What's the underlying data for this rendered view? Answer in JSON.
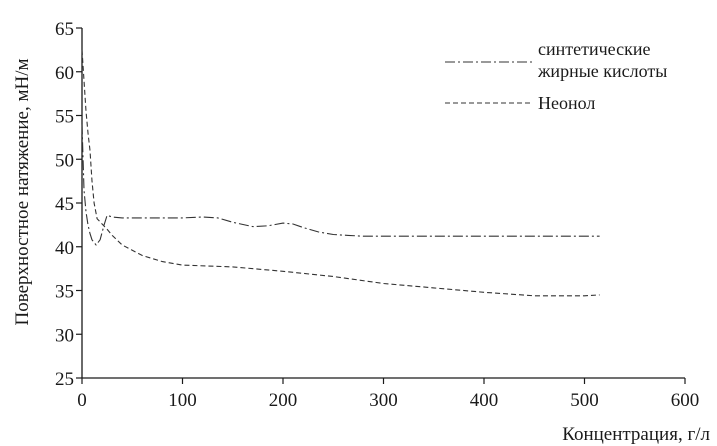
{
  "chart_data": {
    "type": "line",
    "title": "",
    "xlabel": "Концентрация, г/л",
    "ylabel": "Поверхностное натяжение, мН/м",
    "xlim": [
      0,
      600
    ],
    "ylim": [
      25,
      65
    ],
    "x_ticks": [
      0,
      100,
      200,
      300,
      400,
      500,
      600
    ],
    "y_ticks": [
      25,
      30,
      35,
      40,
      45,
      50,
      55,
      60,
      65
    ],
    "x_tick_labels": [
      "0",
      "100",
      "200",
      "300",
      "400",
      "500",
      "600"
    ],
    "y_tick_labels": [
      "25",
      "30",
      "35",
      "40",
      "45",
      "50",
      "55",
      "60",
      "65"
    ],
    "grid": false,
    "legend_position": "top-right",
    "series": [
      {
        "name": "синтетические жирные кислоты",
        "line_style": "dash-dot",
        "color": "#333333",
        "x": [
          0,
          2,
          4,
          6,
          8,
          10,
          14,
          18,
          22,
          25,
          30,
          40,
          60,
          80,
          100,
          120,
          135,
          150,
          170,
          185,
          200,
          210,
          220,
          235,
          250,
          265,
          280,
          300,
          350,
          400,
          450,
          500,
          515
        ],
        "y": [
          54,
          46.5,
          44,
          42.5,
          41.5,
          40.8,
          40.2,
          40.8,
          42.5,
          43.6,
          43.4,
          43.3,
          43.3,
          43.3,
          43.3,
          43.4,
          43.3,
          42.8,
          42.3,
          42.4,
          42.7,
          42.6,
          42.2,
          41.7,
          41.4,
          41.3,
          41.2,
          41.2,
          41.2,
          41.2,
          41.2,
          41.2,
          41.2
        ]
      },
      {
        "name": "Неонол",
        "line_style": "dashed",
        "color": "#333333",
        "x": [
          0,
          2,
          4,
          6,
          8,
          10,
          12,
          15,
          20,
          25,
          30,
          40,
          60,
          80,
          100,
          150,
          200,
          250,
          300,
          350,
          400,
          450,
          480,
          500,
          515
        ],
        "y": [
          62.5,
          59,
          55.5,
          53,
          51,
          47.5,
          45,
          43.2,
          42.6,
          42,
          41.3,
          40.2,
          39,
          38.3,
          37.9,
          37.7,
          37.2,
          36.6,
          35.8,
          35.3,
          34.8,
          34.4,
          34.4,
          34.4,
          34.5
        ]
      }
    ],
    "legend_labels": [
      "синтетические",
      "жирные кислоты",
      "Неонол"
    ]
  }
}
